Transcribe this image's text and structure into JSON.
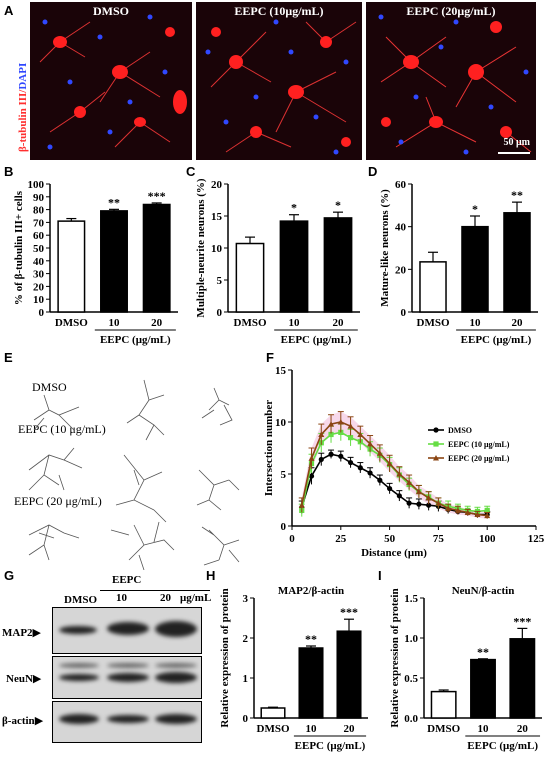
{
  "figure": {
    "panels": {
      "A": {
        "letter": "A",
        "ylabel_red": "β-tubulin III",
        "ylabel_sep": "/",
        "ylabel_blue": "DAPI",
        "images": [
          {
            "title": "DMSO"
          },
          {
            "title": "EEPC (10μg/mL)"
          },
          {
            "title": "EEPC (20μg/mL)"
          }
        ],
        "scale_bar": "50 μm",
        "colors": {
          "stain": "#ff2020",
          "nuclei": "#3048ff",
          "background": "#1a0408"
        }
      },
      "B": {
        "letter": "B"
      },
      "C": {
        "letter": "C"
      },
      "D": {
        "letter": "D"
      },
      "E": {
        "letter": "E",
        "rows": [
          "DMSO",
          "EEPC (10 μg/mL)",
          "EEPC (20 μg/mL)"
        ]
      },
      "F": {
        "letter": "F"
      },
      "G": {
        "letter": "G",
        "top_header": "EEPC",
        "lanes": [
          "DMSO",
          "10",
          "20"
        ],
        "unit": "μg/mL",
        "blots": [
          "MAP2",
          "NeuN",
          "β-actin"
        ]
      },
      "H": {
        "letter": "H"
      },
      "I": {
        "letter": "I"
      }
    }
  },
  "chart_data": [
    {
      "id": "B",
      "type": "bar",
      "categories": [
        "DMSO",
        "10",
        "20"
      ],
      "values": [
        71,
        79,
        84
      ],
      "errors": [
        2,
        1.2,
        1.2
      ],
      "fills": [
        "#ffffff",
        "#000000",
        "#000000"
      ],
      "significance": [
        "",
        "**",
        "***"
      ],
      "ylabel": "% of β-tubulin III+ cells",
      "xgroup_label": "EEPC (μg/mL)",
      "ylim": [
        0,
        100
      ],
      "yticks": [
        0,
        10,
        20,
        30,
        40,
        50,
        60,
        70,
        80,
        90,
        100
      ]
    },
    {
      "id": "C",
      "type": "bar",
      "categories": [
        "DMSO",
        "10",
        "20"
      ],
      "values": [
        10.7,
        14.2,
        14.7
      ],
      "errors": [
        1.0,
        1.0,
        0.9
      ],
      "fills": [
        "#ffffff",
        "#000000",
        "#000000"
      ],
      "significance": [
        "",
        "*",
        "*"
      ],
      "ylabel": "Multiple-neurite neurons (%)",
      "xgroup_label": "EEPC (μg/mL)",
      "ylim": [
        0,
        20
      ],
      "yticks": [
        0,
        5,
        10,
        15,
        20
      ]
    },
    {
      "id": "D",
      "type": "bar",
      "categories": [
        "DMSO",
        "10",
        "20"
      ],
      "values": [
        23.5,
        40,
        46.5
      ],
      "errors": [
        4.5,
        5,
        5
      ],
      "fills": [
        "#ffffff",
        "#000000",
        "#000000"
      ],
      "significance": [
        "",
        "*",
        "**"
      ],
      "ylabel": "Mature-like neurons (%)",
      "xgroup_label": "EEPC (μg/mL)",
      "ylim": [
        0,
        60
      ],
      "yticks": [
        0,
        20,
        40,
        60
      ]
    },
    {
      "id": "F",
      "type": "line",
      "xlabel": "Distance (μm)",
      "ylabel": "Intersection number",
      "xlim": [
        0,
        125
      ],
      "ylim": [
        0,
        15
      ],
      "xticks": [
        0,
        25,
        50,
        75,
        100,
        125
      ],
      "yticks": [
        0,
        5,
        10,
        15
      ],
      "legend_position": "right",
      "x": [
        5,
        10,
        15,
        20,
        25,
        30,
        35,
        40,
        45,
        50,
        55,
        60,
        65,
        70,
        75,
        80,
        85,
        90,
        95,
        100
      ],
      "series": [
        {
          "name": "DMSO",
          "color": "#000000",
          "marker": "circle",
          "values": [
            1.8,
            4.8,
            6.4,
            6.9,
            6.7,
            6.1,
            5.6,
            5.1,
            4.4,
            3.6,
            2.9,
            2.2,
            2.1,
            2.0,
            1.9,
            1.6,
            1.4,
            1.3,
            1.1,
            1.1
          ],
          "errors": [
            0.6,
            0.8,
            0.6,
            0.4,
            0.5,
            0.5,
            0.5,
            0.5,
            0.5,
            0.5,
            0.5,
            0.5,
            0.5,
            0.5,
            0.5,
            0.4,
            0.3,
            0.3,
            0.3,
            0.3
          ]
        },
        {
          "name": "EEPC (10 μg/mL)",
          "color": "#66dd44",
          "marker": "square",
          "values": [
            1.5,
            6.0,
            8.0,
            8.8,
            9.0,
            8.5,
            8.1,
            7.4,
            6.8,
            5.9,
            4.9,
            4.0,
            3.3,
            2.8,
            2.2,
            1.9,
            1.7,
            1.5,
            1.4,
            1.5
          ],
          "errors": [
            0.6,
            0.9,
            0.9,
            0.8,
            0.8,
            0.8,
            0.8,
            0.7,
            0.7,
            0.7,
            0.7,
            0.6,
            0.6,
            0.5,
            0.5,
            0.5,
            0.4,
            0.4,
            0.4,
            0.4
          ]
        },
        {
          "name": "EEPC (20 μg/mL)",
          "color": "#8b4513",
          "marker": "triangle",
          "values": [
            2.0,
            6.5,
            8.8,
            9.8,
            10.0,
            9.6,
            8.8,
            7.9,
            7.0,
            6.0,
            5.0,
            4.2,
            3.3,
            2.7,
            2.2,
            1.7,
            1.5,
            1.3,
            1.1,
            1.0
          ],
          "errors": [
            0.7,
            1.0,
            1.0,
            0.9,
            1.0,
            0.9,
            0.8,
            0.8,
            0.8,
            0.8,
            0.7,
            0.7,
            0.6,
            0.6,
            0.5,
            0.4,
            0.4,
            0.3,
            0.3,
            0.3
          ],
          "band_color": "#f0b8d8"
        }
      ]
    },
    {
      "id": "H",
      "type": "bar",
      "title": "MAP2/β-actin",
      "categories": [
        "DMSO",
        "10",
        "20"
      ],
      "values": [
        0.25,
        1.75,
        2.17
      ],
      "errors": [
        0.02,
        0.05,
        0.3
      ],
      "fills": [
        "#ffffff",
        "#000000",
        "#000000"
      ],
      "significance": [
        "",
        "**",
        "***"
      ],
      "ylabel": "Relative expression of protein",
      "xgroup_label": "EEPC (μg/mL)",
      "ylim": [
        0,
        3
      ],
      "yticks": [
        0,
        1,
        2,
        3
      ]
    },
    {
      "id": "I",
      "type": "bar",
      "title": "NeuN/β-actin",
      "categories": [
        "DMSO",
        "10",
        "20"
      ],
      "values": [
        0.33,
        0.73,
        0.99
      ],
      "errors": [
        0.02,
        0.01,
        0.13
      ],
      "fills": [
        "#ffffff",
        "#000000",
        "#000000"
      ],
      "significance": [
        "",
        "**",
        "***"
      ],
      "ylabel": "Relative expression of protein",
      "xgroup_label": "EEPC (μg/mL)",
      "ylim": [
        0,
        1.5
      ],
      "yticks": [
        0.0,
        0.5,
        1.0,
        1.5
      ]
    }
  ]
}
